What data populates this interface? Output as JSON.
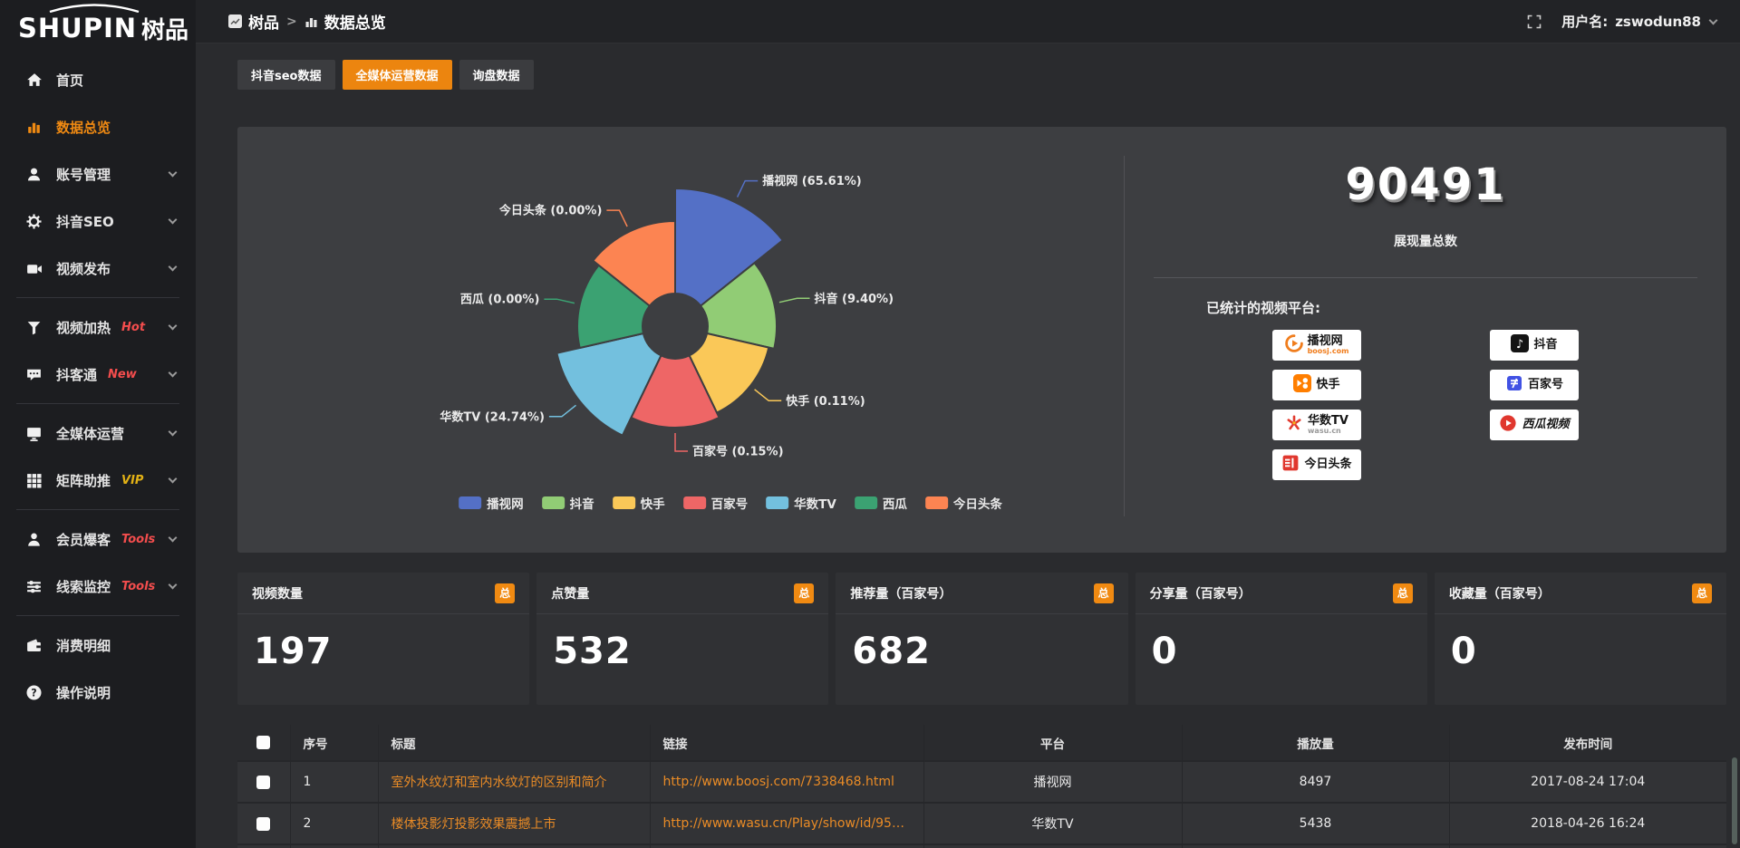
{
  "brand": {
    "logo_text": "SHUPIN",
    "logo_cjk": "树品"
  },
  "topbar": {
    "breadcrumb_root": "树品",
    "breadcrumb_separator": ">",
    "breadcrumb_current": "数据总览",
    "username_label": "用户名:",
    "username": "zswodun88"
  },
  "sidebar": {
    "items": [
      {
        "id": "home",
        "label": "首页",
        "icon": "home"
      },
      {
        "id": "data-overview",
        "label": "数据总览",
        "icon": "bar-chart",
        "active": true
      },
      {
        "id": "account-manage",
        "label": "账号管理",
        "icon": "user",
        "chevron": true
      },
      {
        "id": "douyin-seo",
        "label": "抖音SEO",
        "icon": "gear",
        "chevron": true
      },
      {
        "id": "video-publish",
        "label": "视频发布",
        "icon": "video",
        "chevron": true
      },
      {
        "divider": true
      },
      {
        "id": "video-heat",
        "label": "视频加热",
        "icon": "funnel",
        "badge": "Hot",
        "badge_color": "#f34d4d",
        "chevron": true
      },
      {
        "id": "douketong",
        "label": "抖客通",
        "icon": "chat",
        "badge": "New",
        "badge_color": "#f34d4d",
        "chevron": true
      },
      {
        "divider": true
      },
      {
        "id": "media-operation",
        "label": "全媒体运营",
        "icon": "monitor",
        "chevron": true
      },
      {
        "id": "matrix-boost",
        "label": "矩阵助推",
        "icon": "grid",
        "badge": "VIP",
        "badge_color": "#e2b115",
        "chevron": true
      },
      {
        "divider": true
      },
      {
        "id": "member-baoke",
        "label": "会员爆客",
        "icon": "person",
        "badge": "Tools",
        "badge_color": "#f34d4d",
        "chevron": true
      },
      {
        "id": "clue-monitor",
        "label": "线索监控",
        "icon": "sliders",
        "badge": "Tools",
        "badge_color": "#f34d4d",
        "chevron": true
      },
      {
        "divider": true
      },
      {
        "id": "consume-detail",
        "label": "消费明细",
        "icon": "wallet"
      },
      {
        "id": "help",
        "label": "操作说明",
        "icon": "question"
      }
    ]
  },
  "tabs": [
    {
      "id": "douyin-seo-data",
      "label": "抖音seo数据",
      "active": false
    },
    {
      "id": "media-operation-data",
      "label": "全媒体运营数据",
      "active": true
    },
    {
      "id": "inquiry-data",
      "label": "询盘数据",
      "active": false
    }
  ],
  "chart_data": {
    "type": "pie",
    "variant": "rose",
    "legend_position": "bottom",
    "label_format": "{name} ({percent}%)",
    "series": [
      {
        "name": "播视网",
        "percent": "65.61",
        "color": "#5470c6"
      },
      {
        "name": "抖音",
        "percent": "9.40",
        "color": "#91cc75"
      },
      {
        "name": "快手",
        "percent": "0.11",
        "color": "#fac858"
      },
      {
        "name": "百家号",
        "percent": "0.15",
        "color": "#ee6666"
      },
      {
        "name": "华数TV",
        "percent": "24.74",
        "color": "#73c0de"
      },
      {
        "name": "西瓜",
        "percent": "0.00",
        "color": "#3ba272"
      },
      {
        "name": "今日头条",
        "percent": "0.00",
        "color": "#fc8452"
      }
    ]
  },
  "summary": {
    "total_value": "90491",
    "total_label": "展现量总数",
    "platforms_title": "已统计的视频平台:",
    "platforms": [
      {
        "name": "播视网",
        "sub": "boosj.com",
        "icon": "boosj-logo"
      },
      {
        "name": "抖音",
        "icon": "douyin-logo"
      },
      {
        "name": "快手",
        "icon": "kuaishou-logo"
      },
      {
        "name": "百家号",
        "icon": "baijiahao-logo"
      },
      {
        "name": "华数TV",
        "sub": "wasu.cn",
        "icon": "wasu-logo"
      },
      {
        "name": "西瓜视频",
        "icon": "xigua-logo",
        "italic": true
      },
      {
        "name": "今日头条",
        "icon": "toutiao-logo"
      }
    ]
  },
  "stat_cards": [
    {
      "title": "视频数量",
      "badge": "总",
      "value": "197"
    },
    {
      "title": "点赞量",
      "badge": "总",
      "value": "532"
    },
    {
      "title": "推荐量（百家号）",
      "badge": "总",
      "value": "682"
    },
    {
      "title": "分享量（百家号）",
      "badge": "总",
      "value": "0"
    },
    {
      "title": "收藏量（百家号）",
      "badge": "总",
      "value": "0"
    }
  ],
  "table": {
    "columns": [
      "序号",
      "标题",
      "链接",
      "平台",
      "播放量",
      "发布时间"
    ],
    "rows": [
      {
        "no": "1",
        "title": "室外水纹灯和室内水纹灯的区别和简介",
        "link": "http://www.boosj.com/7338468.html",
        "platform": "播视网",
        "views": "8497",
        "time": "2017-08-24 17:04"
      },
      {
        "no": "2",
        "title": "楼体投影灯投影效果震撼上市",
        "link": "http://www.wasu.cn/Play/show/id/952...",
        "platform": "华数TV",
        "views": "5438",
        "time": "2018-04-26 16:24"
      }
    ]
  },
  "colors": {
    "accent_orange": "#ec850f",
    "link_orange": "#e98b26",
    "active_menu_orange": "#f08a12",
    "badge_red": "#f34d4d",
    "badge_yellow": "#e2b115",
    "panel_bg": "#3d3e41",
    "sidebar_bg": "#1c1d20"
  }
}
